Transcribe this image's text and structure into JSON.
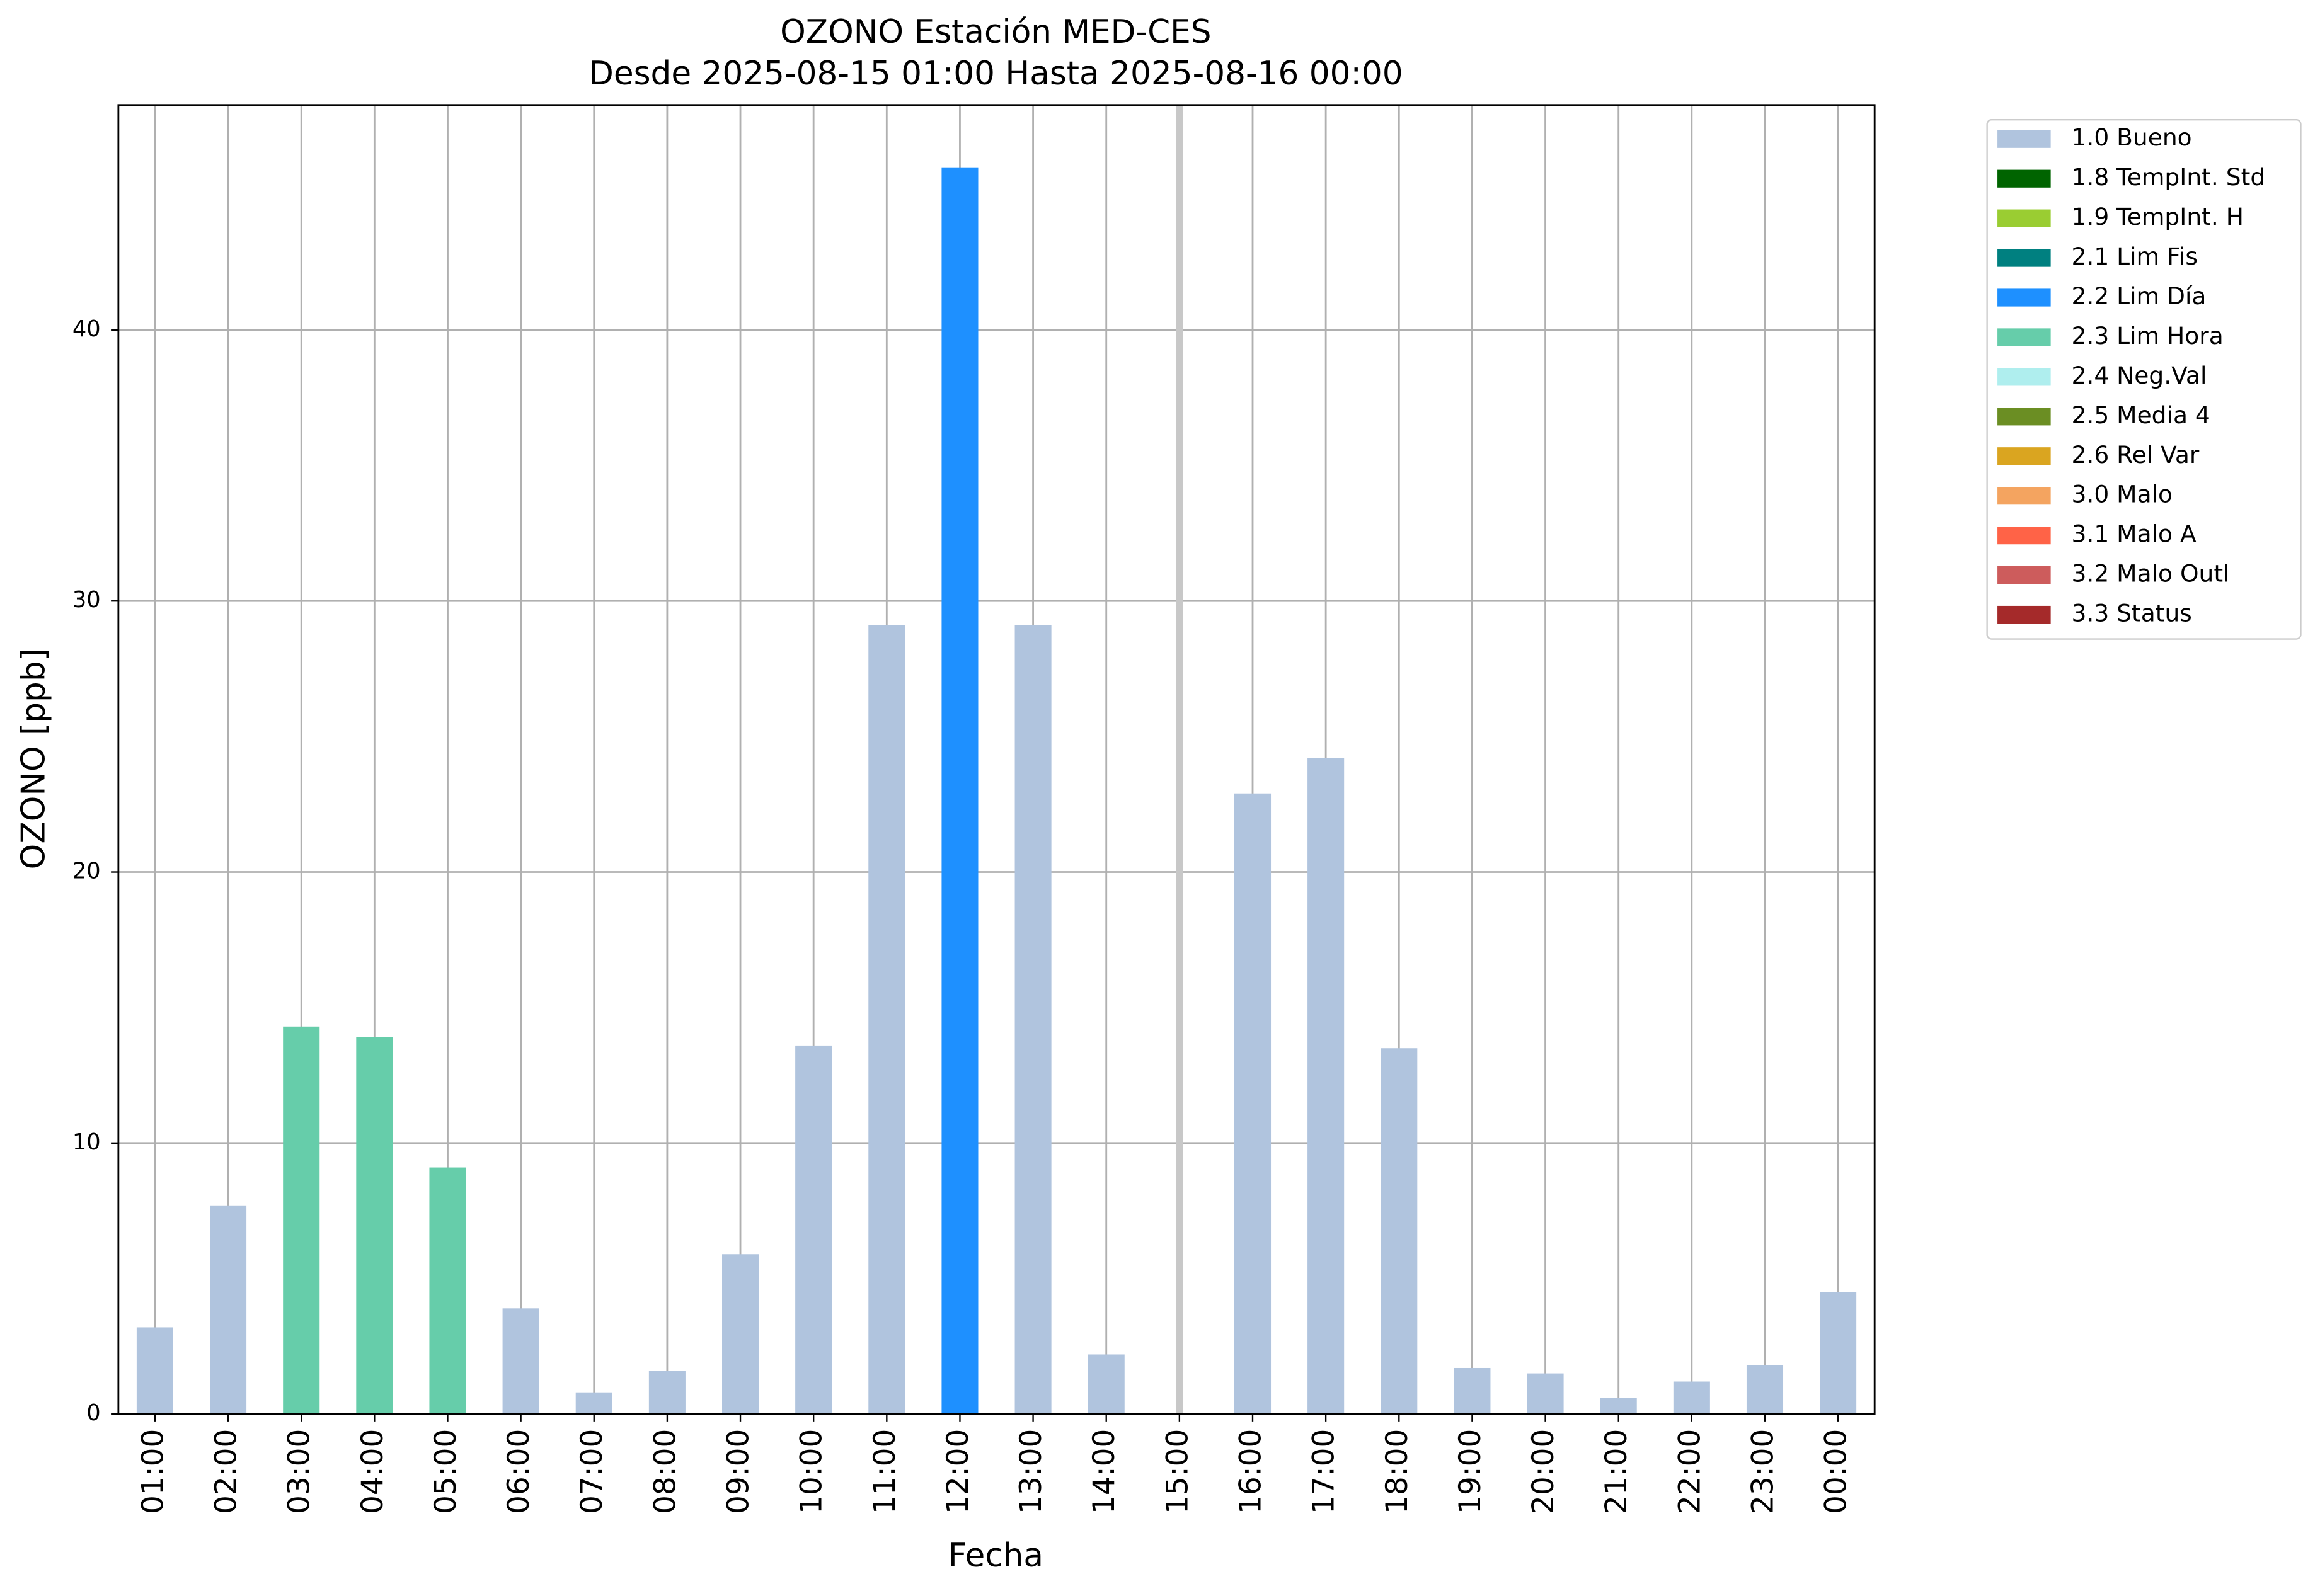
{
  "chart_data": {
    "type": "bar",
    "title": "OZONO Estación MED-CES",
    "subtitle": "Desde 2025-08-15 01:00 Hasta 2025-08-16 00:00",
    "x_label": "Fecha",
    "y_label": "OZONO [ppb]",
    "categories": [
      "01:00",
      "02:00",
      "03:00",
      "04:00",
      "05:00",
      "06:00",
      "07:00",
      "08:00",
      "09:00",
      "10:00",
      "11:00",
      "12:00",
      "13:00",
      "14:00",
      "15:00",
      "16:00",
      "17:00",
      "18:00",
      "19:00",
      "20:00",
      "21:00",
      "22:00",
      "23:00",
      "00:00"
    ],
    "values": [
      3.2,
      7.7,
      14.3,
      13.9,
      9.1,
      3.9,
      0.8,
      1.6,
      5.9,
      13.6,
      29.1,
      46.0,
      29.1,
      2.2,
      null,
      22.9,
      24.2,
      13.5,
      1.7,
      1.5,
      0.6,
      1.2,
      1.8,
      4.5
    ],
    "bar_colors": [
      "#b0c4de",
      "#b0c4de",
      "#66cdaa",
      "#66cdaa",
      "#66cdaa",
      "#b0c4de",
      "#b0c4de",
      "#b0c4de",
      "#b0c4de",
      "#b0c4de",
      "#b0c4de",
      "#1e90ff",
      "#b0c4de",
      "#b0c4de",
      "#b0c4de",
      "#b0c4de",
      "#b0c4de",
      "#b0c4de",
      "#b0c4de",
      "#b0c4de",
      "#b0c4de",
      "#b0c4de",
      "#b0c4de",
      "#b0c4de"
    ],
    "ylim": [
      0,
      48.3
    ],
    "yticks": [
      0,
      10,
      20,
      30,
      40
    ],
    "grid": true,
    "legend_position": "outside-upper-right",
    "legend": [
      {
        "name": "1.0 Bueno",
        "color": "#b0c4de"
      },
      {
        "name": "1.8 TempInt. Std",
        "color": "#006400"
      },
      {
        "name": "1.9 TempInt. H",
        "color": "#9acd32"
      },
      {
        "name": "2.1 Lim Fis",
        "color": "#008080"
      },
      {
        "name": "2.2 Lim Día",
        "color": "#1e90ff"
      },
      {
        "name": "2.3 Lim Hora",
        "color": "#66cdaa"
      },
      {
        "name": "2.4 Neg.Val",
        "color": "#afeeee"
      },
      {
        "name": "2.5 Media 4",
        "color": "#6b8e23"
      },
      {
        "name": "2.6 Rel Var",
        "color": "#daa520"
      },
      {
        "name": "3.0 Malo",
        "color": "#f4a460"
      },
      {
        "name": "3.1 Malo A",
        "color": "#ff6347"
      },
      {
        "name": "3.2 Malo Outl",
        "color": "#cd5c5c"
      },
      {
        "name": "3.3 Status",
        "color": "#a52a2a"
      }
    ]
  }
}
